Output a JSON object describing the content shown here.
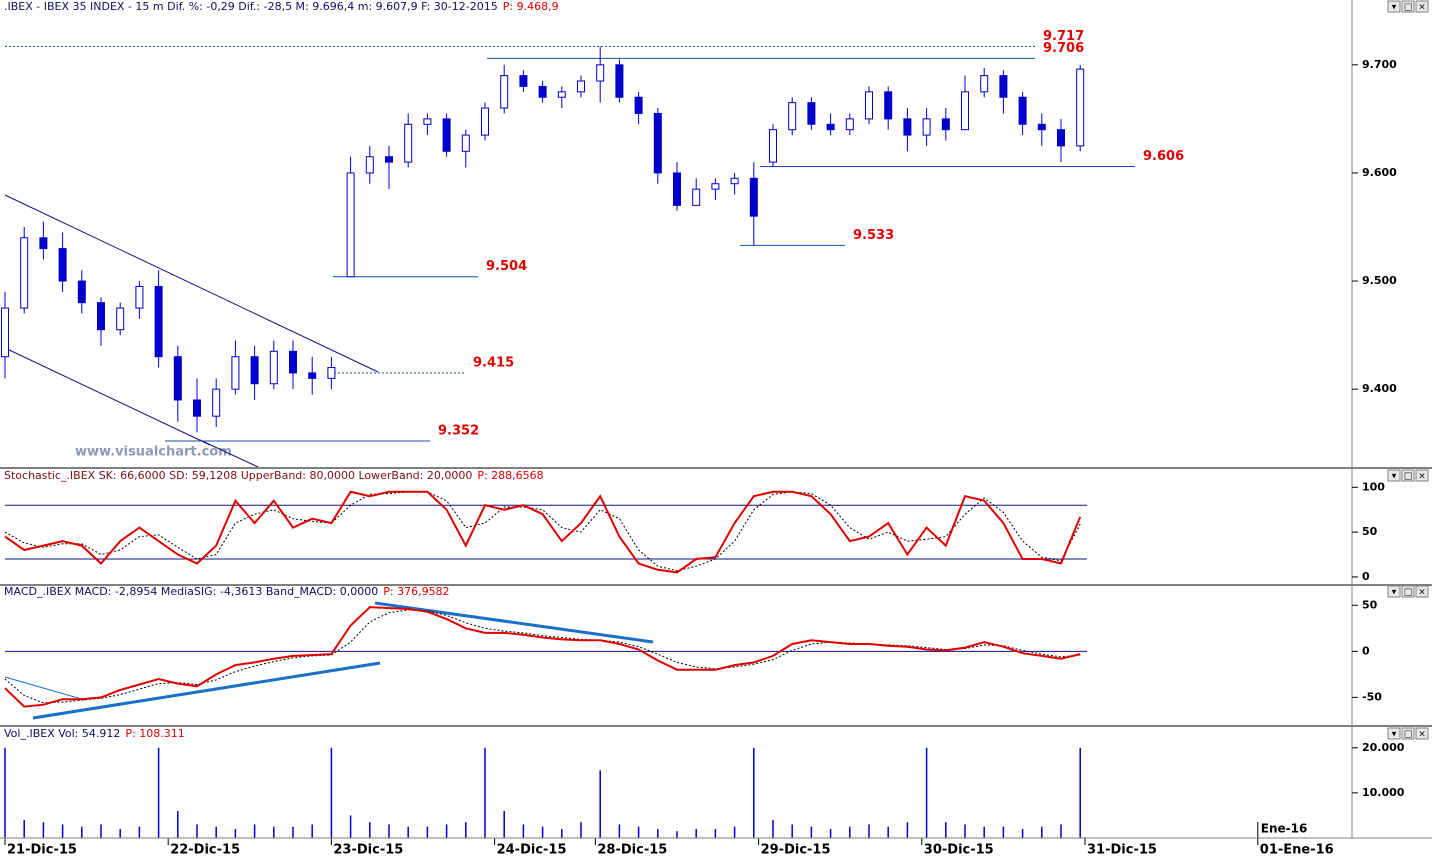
{
  "chart_data": [
    {
      "type": "candlestick",
      "header": ".IBEX - IBEX 35 INDEX - 15 m Dif. %: -0,29 Dif.: -28,5 M: 9.696,4 m: 9.607,9 F: 30-12-2015",
      "header_p": "P: 9.468,9",
      "watermark": "www.visualchart.com",
      "color": "#0000cc",
      "xlim": [
        0,
        280
      ],
      "ylim": [
        9328,
        9747
      ],
      "yticks": [
        {
          "value": 9700,
          "label": "9.700"
        },
        {
          "value": 9600,
          "label": "9.600"
        },
        {
          "value": 9500,
          "label": "9.500"
        },
        {
          "value": 9400,
          "label": "9.400"
        }
      ],
      "x": [
        0,
        4,
        8,
        12,
        16,
        20,
        24,
        28,
        32,
        36,
        40,
        44,
        48,
        52,
        56,
        60,
        64,
        68,
        72,
        76,
        80,
        84,
        88,
        92,
        96,
        100,
        104,
        108,
        112,
        116,
        120,
        124,
        128,
        132,
        136,
        140,
        144,
        148,
        152,
        156,
        160,
        164,
        168,
        172,
        176,
        180,
        184,
        188,
        192,
        196,
        200,
        204,
        208,
        212,
        216,
        220,
        224
      ],
      "open": [
        9430,
        9475,
        9540,
        9530,
        9500,
        9480,
        9455,
        9475,
        9495,
        9430,
        9390,
        9375,
        9400,
        9430,
        9405,
        9435,
        9415,
        9410,
        9504,
        9600,
        9615,
        9610,
        9645,
        9650,
        9620,
        9635,
        9660,
        9690,
        9680,
        9670,
        9675,
        9685,
        9700,
        9670,
        9655,
        9600,
        9570,
        9585,
        9590,
        9595,
        9610,
        9640,
        9665,
        9645,
        9640,
        9650,
        9675,
        9650,
        9635,
        9650,
        9640,
        9675,
        9690,
        9670,
        9645,
        9640,
        9625
      ],
      "high": [
        9490,
        9550,
        9555,
        9545,
        9510,
        9485,
        9480,
        9500,
        9510,
        9440,
        9410,
        9410,
        9445,
        9440,
        9445,
        9445,
        9430,
        9430,
        9615,
        9625,
        9625,
        9655,
        9655,
        9655,
        9640,
        9665,
        9700,
        9695,
        9685,
        9680,
        9690,
        9717,
        9705,
        9675,
        9660,
        9610,
        9595,
        9595,
        9600,
        9610,
        9645,
        9670,
        9670,
        9655,
        9655,
        9680,
        9680,
        9660,
        9660,
        9660,
        9690,
        9697,
        9695,
        9675,
        9655,
        9650,
        9700
      ],
      "low": [
        9410,
        9470,
        9520,
        9490,
        9470,
        9440,
        9450,
        9465,
        9420,
        9370,
        9360,
        9365,
        9395,
        9390,
        9400,
        9400,
        9395,
        9400,
        9504,
        9590,
        9585,
        9605,
        9635,
        9615,
        9605,
        9630,
        9655,
        9675,
        9665,
        9660,
        9670,
        9665,
        9665,
        9645,
        9590,
        9565,
        9570,
        9575,
        9580,
        9533,
        9606,
        9635,
        9640,
        9635,
        9635,
        9645,
        9640,
        9620,
        9625,
        9630,
        9640,
        9670,
        9655,
        9635,
        9625,
        9610,
        9620
      ],
      "close": [
        9475,
        9540,
        9530,
        9500,
        9480,
        9455,
        9475,
        9495,
        9430,
        9390,
        9375,
        9400,
        9430,
        9405,
        9435,
        9415,
        9410,
        9420,
        9600,
        9615,
        9610,
        9645,
        9650,
        9620,
        9635,
        9660,
        9690,
        9680,
        9670,
        9675,
        9685,
        9700,
        9670,
        9655,
        9600,
        9570,
        9585,
        9590,
        9595,
        9560,
        9640,
        9665,
        9645,
        9640,
        9650,
        9675,
        9650,
        9635,
        9650,
        9640,
        9675,
        9690,
        9670,
        9645,
        9640,
        9625,
        9696
      ],
      "levels": [
        {
          "value": 9717,
          "label": "9.717"
        },
        {
          "value": 9706,
          "label": "9.706"
        },
        {
          "value": 9606,
          "label": "9.606"
        },
        {
          "value": 9533,
          "label": "9.533"
        },
        {
          "value": 9504,
          "label": "9.504"
        },
        {
          "value": 9415,
          "label": "9.415"
        },
        {
          "value": 9352,
          "label": "9.352"
        }
      ]
    },
    {
      "type": "line",
      "header": "Stochastic_.IBEX SK: 66,6000 SD: 59,1208 UpperBand: 80,0000 LowerBand: 20,0000",
      "header_p": "P: 288,6568",
      "xlim": [
        0,
        280
      ],
      "ylim": [
        -9,
        107
      ],
      "yticks": [
        100,
        50,
        0
      ],
      "bands": [
        80,
        20
      ],
      "x": [
        0,
        4,
        8,
        12,
        16,
        20,
        24,
        28,
        32,
        36,
        40,
        44,
        48,
        52,
        56,
        60,
        64,
        68,
        72,
        76,
        80,
        84,
        88,
        92,
        96,
        100,
        104,
        108,
        112,
        116,
        120,
        124,
        128,
        132,
        136,
        140,
        144,
        148,
        152,
        156,
        160,
        164,
        168,
        172,
        176,
        180,
        184,
        188,
        192,
        196,
        200,
        204,
        208,
        212,
        216,
        220,
        224
      ],
      "series": [
        {
          "name": "SK",
          "color": "#e00000",
          "values": [
            45,
            30,
            35,
            40,
            35,
            15,
            40,
            55,
            40,
            25,
            15,
            35,
            85,
            60,
            85,
            55,
            65,
            60,
            95,
            90,
            95,
            95,
            95,
            75,
            35,
            80,
            75,
            80,
            70,
            40,
            60,
            90,
            45,
            15,
            8,
            5,
            20,
            22,
            60,
            90,
            95,
            95,
            90,
            70,
            40,
            45,
            60,
            25,
            55,
            35,
            90,
            85,
            60,
            20,
            20,
            15,
            67
          ]
        },
        {
          "name": "SD",
          "color": "#000000",
          "values": [
            50,
            38,
            33,
            37,
            37,
            25,
            30,
            45,
            47,
            33,
            20,
            25,
            60,
            70,
            75,
            65,
            62,
            60,
            80,
            92,
            93,
            95,
            95,
            85,
            55,
            60,
            78,
            78,
            75,
            55,
            50,
            75,
            65,
            30,
            12,
            7,
            12,
            20,
            40,
            75,
            92,
            95,
            93,
            80,
            55,
            42,
            50,
            40,
            42,
            45,
            70,
            88,
            72,
            40,
            22,
            18,
            59
          ]
        }
      ]
    },
    {
      "type": "line",
      "header": "MACD_.IBEX MACD: -2,8954 MediaSIG: -4,3613 Band_MACD: 0,0000",
      "header_p": "P: 376,9582",
      "xlim": [
        0,
        280
      ],
      "ylim": [
        -80,
        59
      ],
      "yticks": [
        50,
        0,
        -50
      ],
      "bands": [
        0
      ],
      "x": [
        0,
        4,
        8,
        12,
        16,
        20,
        24,
        28,
        32,
        36,
        40,
        44,
        48,
        52,
        56,
        60,
        64,
        68,
        72,
        76,
        80,
        84,
        88,
        92,
        96,
        100,
        104,
        108,
        112,
        116,
        120,
        124,
        128,
        132,
        136,
        140,
        144,
        148,
        152,
        156,
        160,
        164,
        168,
        172,
        176,
        180,
        184,
        188,
        192,
        196,
        200,
        204,
        208,
        212,
        216,
        220,
        224
      ],
      "series": [
        {
          "name": "MACD",
          "color": "#e00000",
          "values": [
            -40,
            -60,
            -58,
            -52,
            -52,
            -50,
            -42,
            -36,
            -30,
            -35,
            -38,
            -25,
            -15,
            -12,
            -8,
            -5,
            -4,
            -3,
            28,
            48,
            47,
            46,
            43,
            35,
            25,
            20,
            20,
            18,
            15,
            13,
            12,
            12,
            8,
            2,
            -10,
            -20,
            -20,
            -20,
            -15,
            -12,
            -5,
            8,
            12,
            10,
            8,
            8,
            6,
            5,
            2,
            1,
            4,
            10,
            5,
            -2,
            -5,
            -8,
            -3
          ]
        },
        {
          "name": "MediaSIG",
          "color": "#000000",
          "values": [
            -30,
            -48,
            -56,
            -55,
            -53,
            -51,
            -47,
            -41,
            -35,
            -34,
            -36,
            -31,
            -22,
            -16,
            -11,
            -7,
            -5,
            -4,
            10,
            32,
            42,
            45,
            44,
            39,
            31,
            25,
            22,
            20,
            17,
            15,
            13,
            12,
            10,
            5,
            -3,
            -12,
            -17,
            -19,
            -17,
            -14,
            -9,
            1,
            8,
            10,
            9,
            8,
            7,
            6,
            4,
            2,
            3,
            7,
            6,
            1,
            -3,
            -6,
            -4
          ]
        }
      ]
    },
    {
      "type": "bar",
      "header": "Vol_.IBEX Vol: 54.912",
      "header_p": "P: 108.311",
      "color": "#0000cc",
      "xlim": [
        0,
        280
      ],
      "ylim": [
        0,
        21500
      ],
      "yticks": [
        {
          "value": 20000,
          "label": "20.000"
        },
        {
          "value": 10000,
          "label": "10.000"
        }
      ],
      "x": [
        0,
        4,
        8,
        12,
        16,
        20,
        24,
        28,
        32,
        36,
        40,
        44,
        48,
        52,
        56,
        60,
        64,
        68,
        72,
        76,
        80,
        84,
        88,
        92,
        96,
        100,
        104,
        108,
        112,
        116,
        120,
        124,
        128,
        132,
        136,
        140,
        144,
        148,
        152,
        156,
        160,
        164,
        168,
        172,
        176,
        180,
        184,
        188,
        192,
        196,
        200,
        204,
        208,
        212,
        216,
        220,
        224
      ],
      "values": [
        20000,
        4000,
        3500,
        3000,
        2500,
        3000,
        2000,
        2500,
        20000,
        6000,
        3000,
        2500,
        2000,
        3000,
        2500,
        2500,
        3000,
        20000,
        5000,
        3500,
        3000,
        2500,
        2500,
        3000,
        3500,
        20000,
        6000,
        3000,
        2500,
        2000,
        3500,
        15000,
        3000,
        2500,
        2000,
        1500,
        2000,
        2000,
        2500,
        20000,
        4000,
        3000,
        2500,
        2000,
        2500,
        3000,
        2500,
        3500,
        20000,
        3500,
        3000,
        2500,
        2500,
        2000,
        2500,
        3000,
        20000
      ],
      "xticks": [
        {
          "value": 0,
          "label": "21-Dic-15"
        },
        {
          "value": 34,
          "label": "22-Dic-15"
        },
        {
          "value": 68,
          "label": "23-Dic-15"
        },
        {
          "value": 102,
          "label": "24-Dic-15"
        },
        {
          "value": 123,
          "label": "28-Dic-15"
        },
        {
          "value": 157,
          "label": "29-Dic-15"
        },
        {
          "value": 191,
          "label": "30-Dic-15"
        },
        {
          "value": 225,
          "label": "31-Dic-15"
        },
        {
          "value": 261,
          "label": "01-Ene-16"
        }
      ],
      "month_tick": {
        "value": 261,
        "label": "Ene-16"
      }
    }
  ]
}
